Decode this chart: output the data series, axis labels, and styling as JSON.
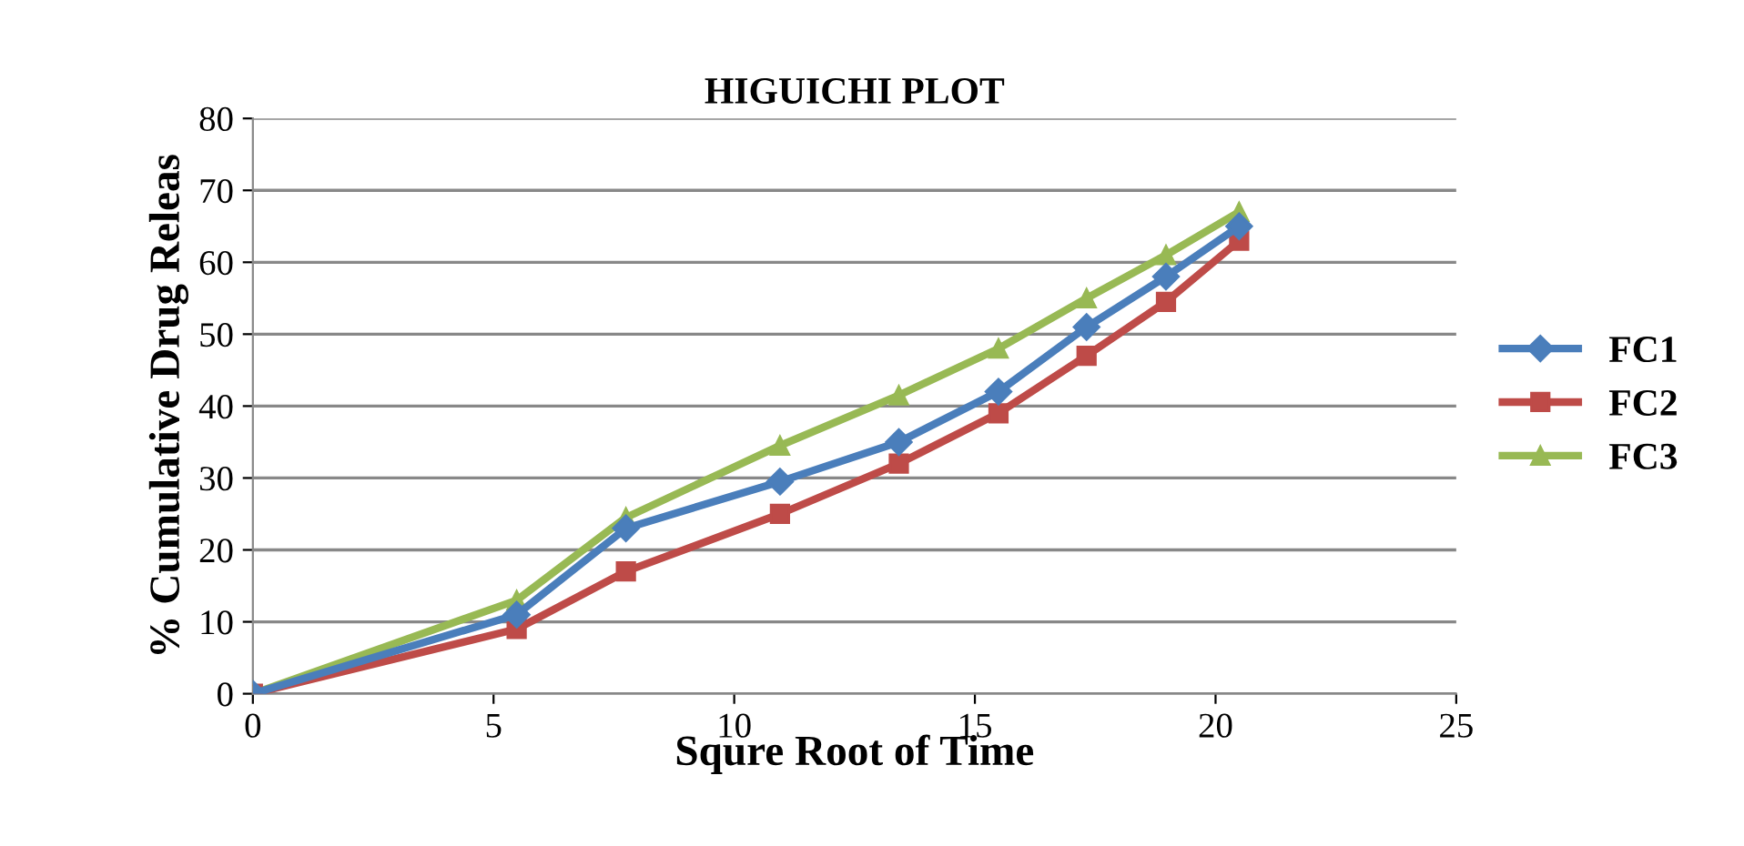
{
  "chart_data": {
    "type": "line",
    "title": "HIGUICHI PLOT",
    "xlabel": "Squre Root of Time",
    "ylabel": "% Cumulative Drug Releas",
    "x": [
      0,
      5.48,
      7.75,
      10.95,
      13.42,
      15.49,
      17.32,
      18.97,
      20.49
    ],
    "series": [
      {
        "name": "FC1",
        "color": "#4a7ebb",
        "marker": "diamond",
        "values": [
          0,
          11,
          23,
          29.5,
          35,
          42,
          51,
          58,
          65
        ]
      },
      {
        "name": "FC2",
        "color": "#be4b48",
        "marker": "square",
        "values": [
          0,
          9,
          17,
          25,
          32,
          39,
          47,
          54.5,
          63
        ]
      },
      {
        "name": "FC3",
        "color": "#98b954",
        "marker": "triangle",
        "values": [
          0,
          13,
          24.5,
          34.5,
          41.5,
          48,
          55,
          61,
          67
        ]
      }
    ],
    "xlim": [
      0,
      25
    ],
    "xticks": [
      0,
      5,
      10,
      15,
      20,
      25
    ],
    "ylim": [
      0,
      80
    ],
    "yticks": [
      0,
      10,
      20,
      30,
      40,
      50,
      60,
      70,
      80
    ],
    "grid": "y",
    "legend": "right"
  }
}
